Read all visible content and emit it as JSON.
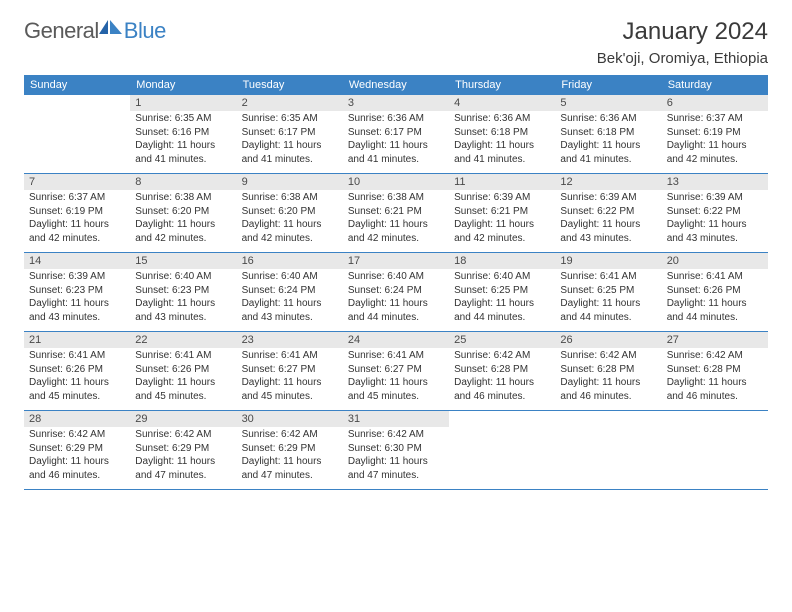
{
  "logo": {
    "part1": "General",
    "part2": "Blue"
  },
  "title": {
    "month_year": "January 2024",
    "location": "Bek'oji, Oromiya, Ethiopia"
  },
  "colors": {
    "header_bg": "#3b82c4",
    "header_fg": "#ffffff",
    "daynum_bg": "#e8e8e8",
    "daynum_fg": "#4a4a4a",
    "text": "#333333",
    "rule": "#3b82c4",
    "page_bg": "#ffffff",
    "logo_gray": "#5a5a5a",
    "logo_blue": "#3b82c4"
  },
  "fonts": {
    "title_pt": 24,
    "loc_pt": 15,
    "th_pt": 11,
    "daynum_pt": 11,
    "body_pt": 10
  },
  "layout": {
    "cols": 7,
    "rows": 5,
    "first_weekday_offset": 1
  },
  "weekdays": [
    "Sunday",
    "Monday",
    "Tuesday",
    "Wednesday",
    "Thursday",
    "Friday",
    "Saturday"
  ],
  "days": [
    {
      "n": 1,
      "sr": "6:35 AM",
      "ss": "6:16 PM",
      "dl": "11 hours and 41 minutes."
    },
    {
      "n": 2,
      "sr": "6:35 AM",
      "ss": "6:17 PM",
      "dl": "11 hours and 41 minutes."
    },
    {
      "n": 3,
      "sr": "6:36 AM",
      "ss": "6:17 PM",
      "dl": "11 hours and 41 minutes."
    },
    {
      "n": 4,
      "sr": "6:36 AM",
      "ss": "6:18 PM",
      "dl": "11 hours and 41 minutes."
    },
    {
      "n": 5,
      "sr": "6:36 AM",
      "ss": "6:18 PM",
      "dl": "11 hours and 41 minutes."
    },
    {
      "n": 6,
      "sr": "6:37 AM",
      "ss": "6:19 PM",
      "dl": "11 hours and 42 minutes."
    },
    {
      "n": 7,
      "sr": "6:37 AM",
      "ss": "6:19 PM",
      "dl": "11 hours and 42 minutes."
    },
    {
      "n": 8,
      "sr": "6:38 AM",
      "ss": "6:20 PM",
      "dl": "11 hours and 42 minutes."
    },
    {
      "n": 9,
      "sr": "6:38 AM",
      "ss": "6:20 PM",
      "dl": "11 hours and 42 minutes."
    },
    {
      "n": 10,
      "sr": "6:38 AM",
      "ss": "6:21 PM",
      "dl": "11 hours and 42 minutes."
    },
    {
      "n": 11,
      "sr": "6:39 AM",
      "ss": "6:21 PM",
      "dl": "11 hours and 42 minutes."
    },
    {
      "n": 12,
      "sr": "6:39 AM",
      "ss": "6:22 PM",
      "dl": "11 hours and 43 minutes."
    },
    {
      "n": 13,
      "sr": "6:39 AM",
      "ss": "6:22 PM",
      "dl": "11 hours and 43 minutes."
    },
    {
      "n": 14,
      "sr": "6:39 AM",
      "ss": "6:23 PM",
      "dl": "11 hours and 43 minutes."
    },
    {
      "n": 15,
      "sr": "6:40 AM",
      "ss": "6:23 PM",
      "dl": "11 hours and 43 minutes."
    },
    {
      "n": 16,
      "sr": "6:40 AM",
      "ss": "6:24 PM",
      "dl": "11 hours and 43 minutes."
    },
    {
      "n": 17,
      "sr": "6:40 AM",
      "ss": "6:24 PM",
      "dl": "11 hours and 44 minutes."
    },
    {
      "n": 18,
      "sr": "6:40 AM",
      "ss": "6:25 PM",
      "dl": "11 hours and 44 minutes."
    },
    {
      "n": 19,
      "sr": "6:41 AM",
      "ss": "6:25 PM",
      "dl": "11 hours and 44 minutes."
    },
    {
      "n": 20,
      "sr": "6:41 AM",
      "ss": "6:26 PM",
      "dl": "11 hours and 44 minutes."
    },
    {
      "n": 21,
      "sr": "6:41 AM",
      "ss": "6:26 PM",
      "dl": "11 hours and 45 minutes."
    },
    {
      "n": 22,
      "sr": "6:41 AM",
      "ss": "6:26 PM",
      "dl": "11 hours and 45 minutes."
    },
    {
      "n": 23,
      "sr": "6:41 AM",
      "ss": "6:27 PM",
      "dl": "11 hours and 45 minutes."
    },
    {
      "n": 24,
      "sr": "6:41 AM",
      "ss": "6:27 PM",
      "dl": "11 hours and 45 minutes."
    },
    {
      "n": 25,
      "sr": "6:42 AM",
      "ss": "6:28 PM",
      "dl": "11 hours and 46 minutes."
    },
    {
      "n": 26,
      "sr": "6:42 AM",
      "ss": "6:28 PM",
      "dl": "11 hours and 46 minutes."
    },
    {
      "n": 27,
      "sr": "6:42 AM",
      "ss": "6:28 PM",
      "dl": "11 hours and 46 minutes."
    },
    {
      "n": 28,
      "sr": "6:42 AM",
      "ss": "6:29 PM",
      "dl": "11 hours and 46 minutes."
    },
    {
      "n": 29,
      "sr": "6:42 AM",
      "ss": "6:29 PM",
      "dl": "11 hours and 47 minutes."
    },
    {
      "n": 30,
      "sr": "6:42 AM",
      "ss": "6:29 PM",
      "dl": "11 hours and 47 minutes."
    },
    {
      "n": 31,
      "sr": "6:42 AM",
      "ss": "6:30 PM",
      "dl": "11 hours and 47 minutes."
    }
  ],
  "labels": {
    "sunrise": "Sunrise:",
    "sunset": "Sunset:",
    "daylight": "Daylight:"
  }
}
